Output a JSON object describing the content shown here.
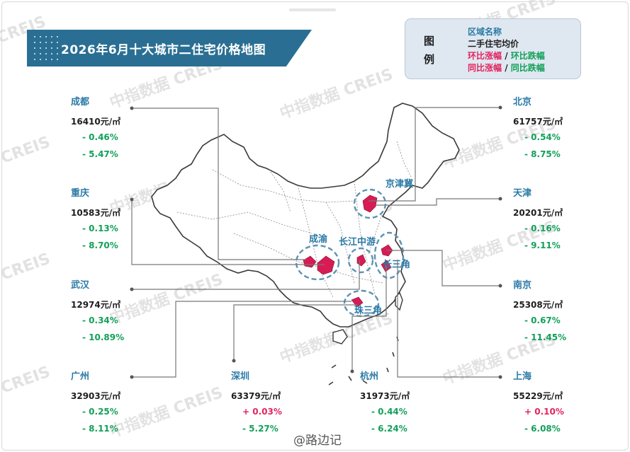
{
  "title": "2026年6月十大城市二住宅价格地图",
  "legend": {
    "label": "图例",
    "region_name": "区域名称",
    "avg_price": "二手住宅均价",
    "mom_up": "环比涨幅",
    "slash": "/",
    "mom_down": "环比跌幅",
    "yoy_up": "同比涨幅",
    "yoy_down": "同比跌幅"
  },
  "regions": [
    "京津冀",
    "成渝",
    "长江中游",
    "长三角",
    "珠三角"
  ],
  "unit": "元/㎡",
  "cities": [
    {
      "name": "成都",
      "price": "16410",
      "mom": "- 0.46%",
      "yoy": "- 5.47%",
      "mom_dir": "down",
      "yoy_dir": "down"
    },
    {
      "name": "重庆",
      "price": "10583",
      "mom": "- 0.13%",
      "yoy": "- 8.70%",
      "mom_dir": "down",
      "yoy_dir": "down"
    },
    {
      "name": "武汉",
      "price": "12974",
      "mom": "- 0.34%",
      "yoy": "- 10.89%",
      "mom_dir": "down",
      "yoy_dir": "down"
    },
    {
      "name": "广州",
      "price": "32903",
      "mom": "- 0.25%",
      "yoy": "- 8.11%",
      "mom_dir": "down",
      "yoy_dir": "down"
    },
    {
      "name": "深圳",
      "price": "63379",
      "mom": "+ 0.03%",
      "yoy": "- 5.27%",
      "mom_dir": "up",
      "yoy_dir": "down"
    },
    {
      "name": "杭州",
      "price": "31973",
      "mom": "- 0.44%",
      "yoy": "- 6.24%",
      "mom_dir": "down",
      "yoy_dir": "down"
    },
    {
      "name": "上海",
      "price": "55229",
      "mom": "+ 0.10%",
      "yoy": "- 6.08%",
      "mom_dir": "up",
      "yoy_dir": "down"
    },
    {
      "name": "南京",
      "price": "25308",
      "mom": "- 0.67%",
      "yoy": "- 11.45%",
      "mom_dir": "down",
      "yoy_dir": "down"
    },
    {
      "name": "天津",
      "price": "20201",
      "mom": "- 0.16%",
      "yoy": "- 9.11%",
      "mom_dir": "down",
      "yoy_dir": "down"
    },
    {
      "name": "北京",
      "price": "61757",
      "mom": "- 0.54%",
      "yoy": "- 8.75%",
      "mom_dir": "down",
      "yoy_dir": "down"
    }
  ],
  "watermark": {
    "cn": "中指数据",
    "en": "CREIS"
  },
  "credit": "@路边记",
  "colors": {
    "banner": "#2a6f93",
    "accent": "#2b7aa6",
    "up": "#e3245e",
    "down": "#12a05a",
    "city_fill": "#d81b55"
  }
}
